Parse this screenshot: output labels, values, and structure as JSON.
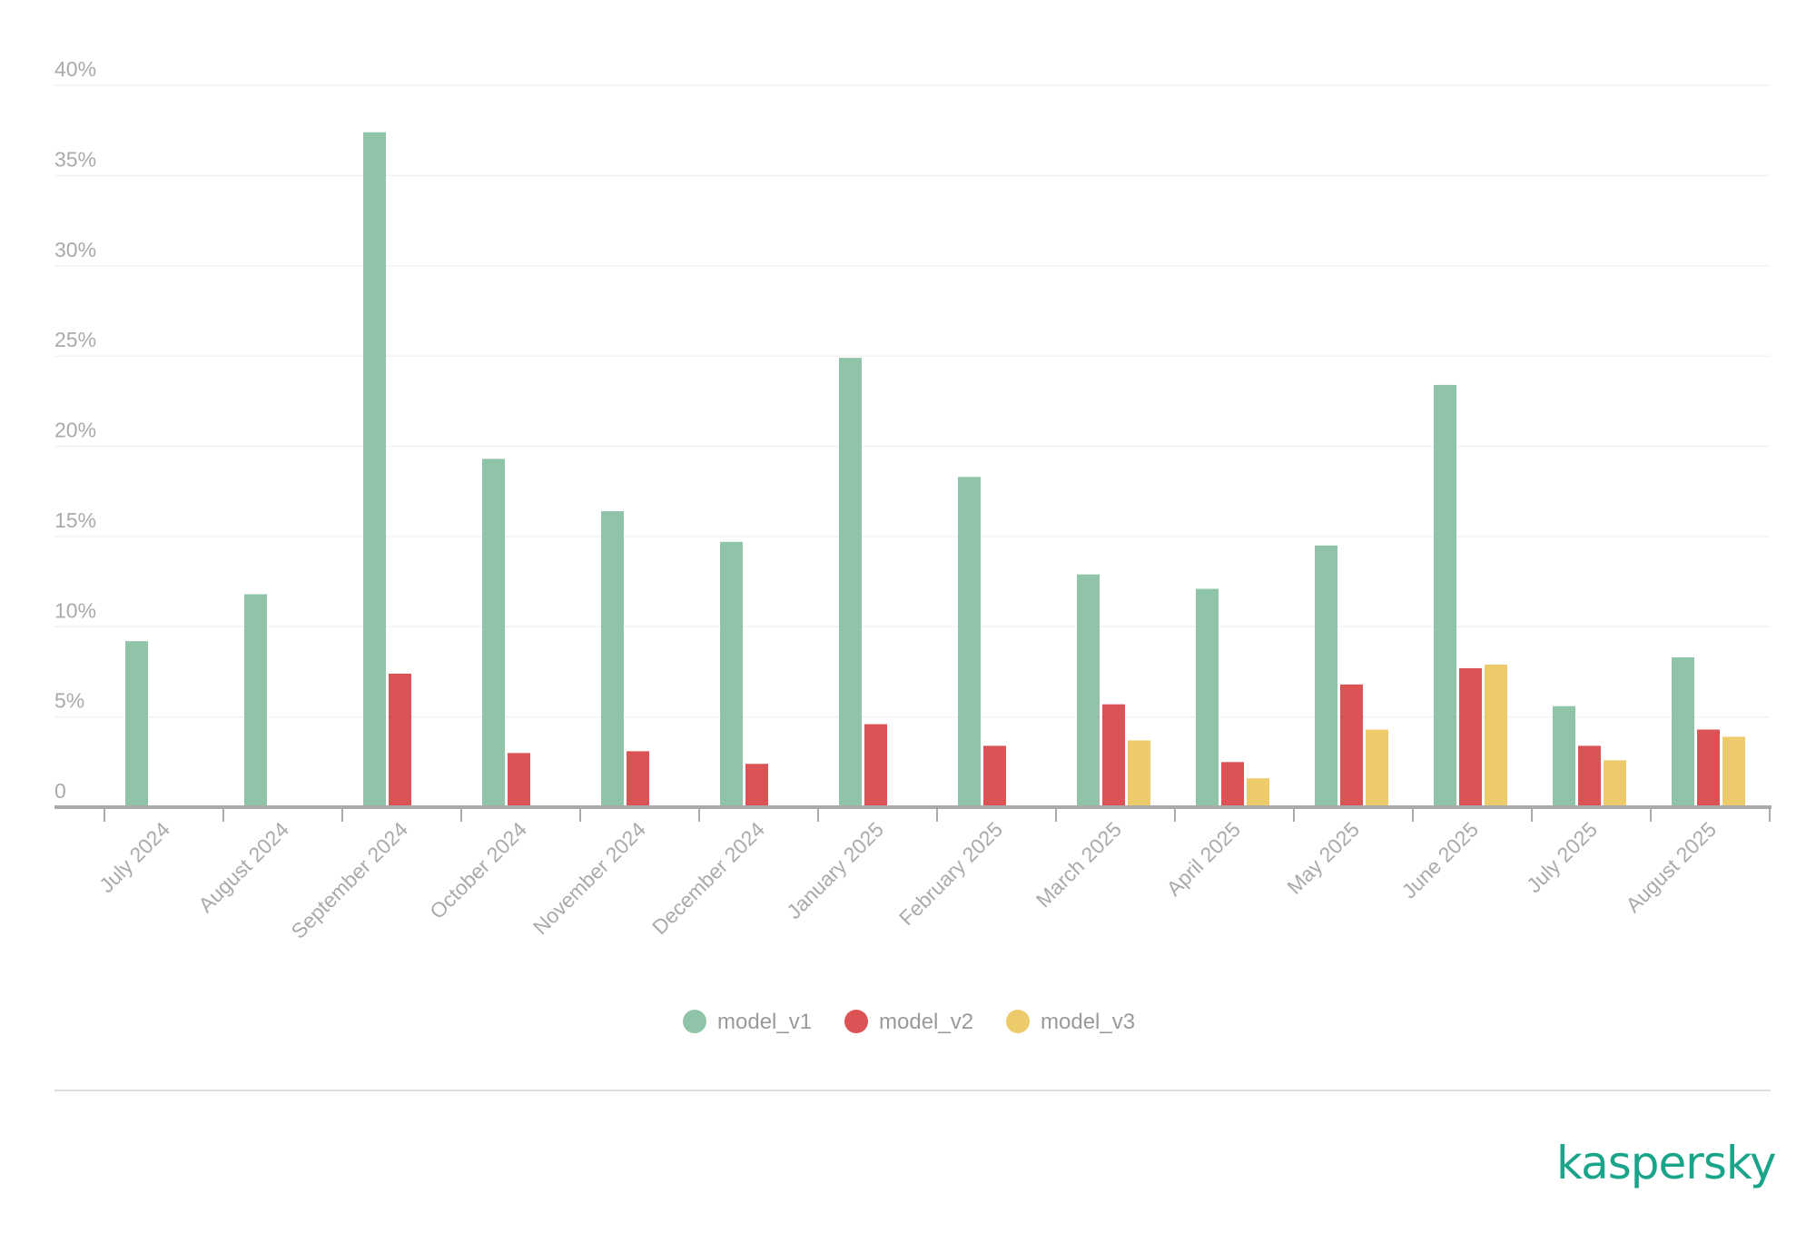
{
  "chart_data": {
    "type": "bar",
    "title": "",
    "xlabel": "",
    "ylabel": "",
    "ylim": [
      0,
      40
    ],
    "yticks": [
      "0",
      "5%",
      "10%",
      "15%",
      "20%",
      "25%",
      "30%",
      "35%",
      "40%"
    ],
    "grid": true,
    "legend_position": "bottom-center",
    "categories": [
      "July 2024",
      "August 2024",
      "September 2024",
      "October 2024",
      "November 2024",
      "December 2024",
      "January 2025",
      "February 2025",
      "March 2025",
      "April 2025",
      "May 2025",
      "June 2025",
      "July 2025",
      "August 2025"
    ],
    "series": [
      {
        "name": "model_v1",
        "color": "#8fc4a8",
        "values": [
          9.2,
          11.8,
          37.4,
          19.3,
          16.4,
          14.7,
          24.9,
          18.3,
          12.9,
          12.1,
          14.5,
          23.4,
          5.6,
          8.3
        ]
      },
      {
        "name": "model_v2",
        "color": "#dc5356",
        "values": [
          null,
          null,
          7.4,
          3.0,
          3.1,
          2.4,
          4.6,
          3.4,
          5.7,
          2.5,
          6.8,
          7.7,
          3.4,
          4.3
        ]
      },
      {
        "name": "model_v3",
        "color": "#eecb6a",
        "values": [
          null,
          null,
          null,
          null,
          null,
          null,
          null,
          null,
          3.7,
          1.6,
          4.3,
          7.9,
          2.6,
          3.9
        ]
      }
    ]
  },
  "branding": {
    "logo": "kaspersky",
    "logo_color": "#1aa58a"
  }
}
